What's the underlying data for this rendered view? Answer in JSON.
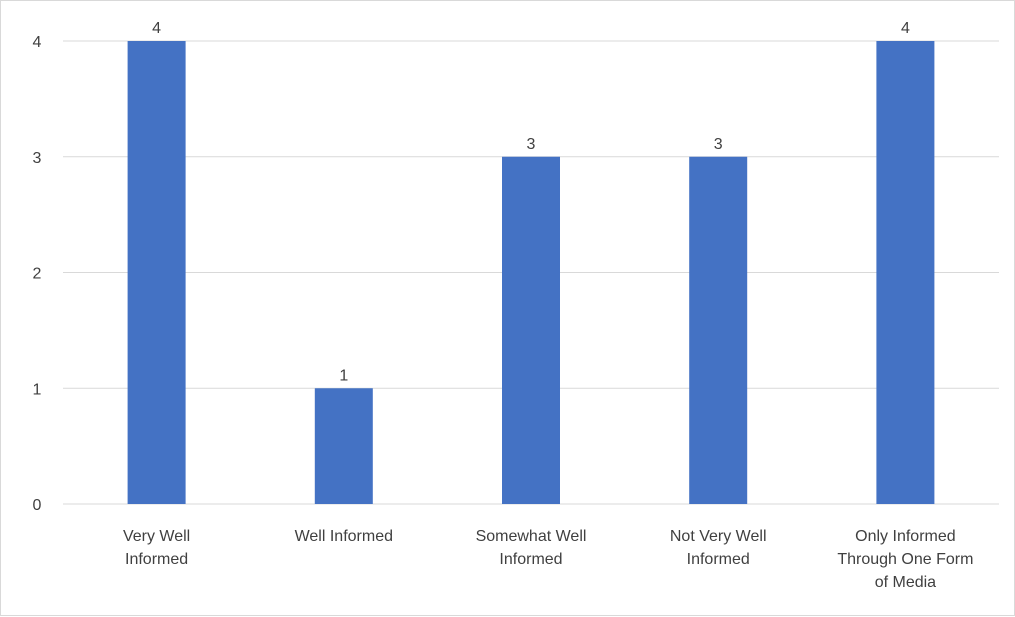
{
  "chart_data": {
    "type": "bar",
    "title": "",
    "xlabel": "",
    "ylabel": "",
    "categories": [
      [
        "Very Well",
        "Informed"
      ],
      [
        "Well Informed"
      ],
      [
        "Somewhat Well",
        "Informed"
      ],
      [
        "Not Very Well",
        "Informed"
      ],
      [
        "Only Informed",
        "Through One Form",
        "of Media"
      ]
    ],
    "values": [
      4,
      1,
      3,
      3,
      4
    ],
    "ylim": [
      0,
      4
    ],
    "yticks": [
      0,
      1,
      2,
      3,
      4
    ],
    "grid": true,
    "legend": "none",
    "show_data_labels": true,
    "bar_color": "#4472C4",
    "grid_color": "#d9d9d9"
  }
}
